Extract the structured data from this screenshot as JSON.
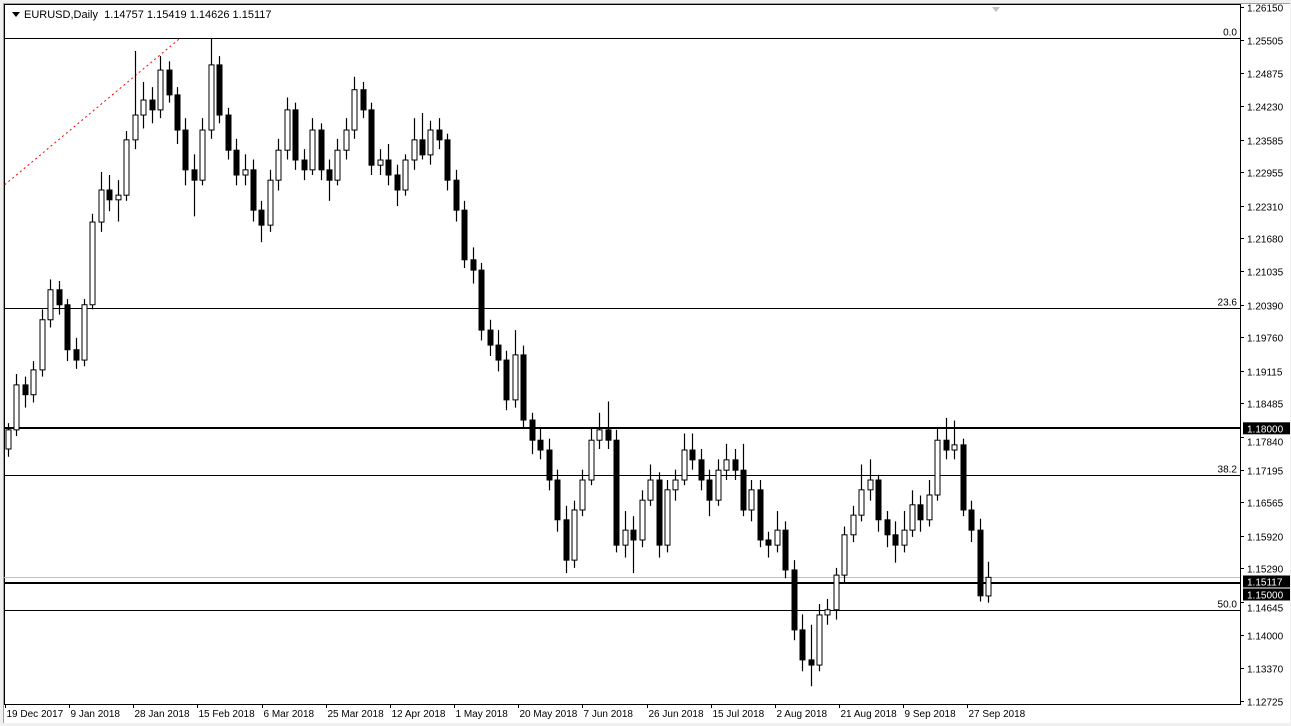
{
  "header": {
    "symbol": "EURUSD,Daily",
    "ohlc": "1.14757 1.15419 1.14626 1.15117"
  },
  "colors": {
    "background": "#ffffff",
    "candle": "#000000",
    "bull_body": "#ffffff",
    "bear_body": "#000000",
    "trendline": "#ff0000",
    "bid_line": "#c0c0c0",
    "price_label_bg": "#000000",
    "price_label_text": "#ffffff"
  },
  "chart_data": {
    "type": "candlestick",
    "symbol": "EURUSD",
    "timeframe": "Daily",
    "ylim": [
      1.12725,
      1.2615
    ],
    "grid": false,
    "y_ticks": [
      "1.26150",
      "1.25505",
      "1.24875",
      "1.24230",
      "1.23585",
      "1.22955",
      "1.22310",
      "1.21680",
      "1.21035",
      "1.20390",
      "1.19760",
      "1.19115",
      "1.18485",
      "1.17840",
      "1.17195",
      "1.16565",
      "1.15920",
      "1.15290",
      "1.14645",
      "1.14000",
      "1.13370",
      "1.12725"
    ],
    "x_ticks": [
      "19 Dec 2017",
      "9 Jan 2018",
      "28 Jan 2018",
      "15 Feb 2018",
      "6 Mar 2018",
      "25 Mar 2018",
      "12 Apr 2018",
      "1 May 2018",
      "20 May 2018",
      "7 Jun 2018",
      "26 Jun 2018",
      "15 Jul 2018",
      "2 Aug 2018",
      "21 Aug 2018",
      "9 Sep 2018",
      "27 Sep 2018"
    ],
    "horizontal_lines": [
      {
        "price": 1.18,
        "label": "1.18000"
      },
      {
        "price": 1.15,
        "label": "1.15000"
      }
    ],
    "bid": {
      "price": 1.15117,
      "label": "1.15117"
    },
    "fibonacci": [
      {
        "level": "0.0",
        "price": 1.2555
      },
      {
        "level": "23.6",
        "price": 1.2033
      },
      {
        "level": "38.2",
        "price": 1.171
      },
      {
        "level": "50.0",
        "price": 1.1449
      }
    ],
    "trendline": {
      "from": {
        "bar": -0.4,
        "price": 1.2271
      },
      "to": {
        "bar": 20.4,
        "price": 1.2555
      }
    },
    "candles": [
      [
        1.176,
        1.181,
        1.1745,
        1.1797
      ],
      [
        1.1797,
        1.1905,
        1.1785,
        1.1884
      ],
      [
        1.1884,
        1.19,
        1.184,
        1.1865
      ],
      [
        1.1865,
        1.193,
        1.185,
        1.1913
      ],
      [
        1.1913,
        1.203,
        1.19,
        1.201
      ],
      [
        1.201,
        1.2088,
        1.1995,
        1.2068
      ],
      [
        1.2068,
        1.2085,
        1.202,
        1.2039
      ],
      [
        1.2039,
        1.205,
        1.193,
        1.1952
      ],
      [
        1.1952,
        1.1975,
        1.1915,
        1.1932
      ],
      [
        1.1932,
        1.205,
        1.192,
        1.2039
      ],
      [
        1.2039,
        1.2215,
        1.203,
        1.2199
      ],
      [
        1.2199,
        1.2296,
        1.218,
        1.2261
      ],
      [
        1.2261,
        1.229,
        1.222,
        1.2242
      ],
      [
        1.2242,
        1.228,
        1.22,
        1.2251
      ],
      [
        1.2251,
        1.2375,
        1.224,
        1.2358
      ],
      [
        1.2358,
        1.253,
        1.234,
        1.2406
      ],
      [
        1.2406,
        1.247,
        1.238,
        1.2435
      ],
      [
        1.2435,
        1.246,
        1.239,
        1.2416
      ],
      [
        1.2416,
        1.252,
        1.24,
        1.2493
      ],
      [
        1.2493,
        1.251,
        1.243,
        1.2445
      ],
      [
        1.2445,
        1.246,
        1.235,
        1.2377
      ],
      [
        1.2377,
        1.24,
        1.227,
        1.23
      ],
      [
        1.23,
        1.233,
        1.221,
        1.228
      ],
      [
        1.228,
        1.24,
        1.227,
        1.2377
      ],
      [
        1.2377,
        1.2555,
        1.236,
        1.2503
      ],
      [
        1.2503,
        1.252,
        1.239,
        1.2406
      ],
      [
        1.2406,
        1.242,
        1.232,
        1.2338
      ],
      [
        1.2338,
        1.236,
        1.227,
        1.229
      ],
      [
        1.229,
        1.233,
        1.227,
        1.23
      ],
      [
        1.23,
        1.232,
        1.22,
        1.2222
      ],
      [
        1.2222,
        1.224,
        1.216,
        1.2193
      ],
      [
        1.2193,
        1.23,
        1.218,
        1.228
      ],
      [
        1.228,
        1.236,
        1.226,
        1.2338
      ],
      [
        1.2338,
        1.244,
        1.232,
        1.2416
      ],
      [
        1.2416,
        1.243,
        1.23,
        1.2319
      ],
      [
        1.2319,
        1.234,
        1.228,
        1.23
      ],
      [
        1.23,
        1.24,
        1.229,
        1.2377
      ],
      [
        1.2377,
        1.239,
        1.228,
        1.23
      ],
      [
        1.23,
        1.232,
        1.224,
        1.228
      ],
      [
        1.228,
        1.236,
        1.227,
        1.2338
      ],
      [
        1.2338,
        1.24,
        1.232,
        1.2377
      ],
      [
        1.2377,
        1.248,
        1.236,
        1.2455
      ],
      [
        1.2455,
        1.247,
        1.24,
        1.2416
      ],
      [
        1.2416,
        1.243,
        1.229,
        1.2309
      ],
      [
        1.2309,
        1.234,
        1.229,
        1.2319
      ],
      [
        1.2319,
        1.235,
        1.227,
        1.229
      ],
      [
        1.229,
        1.231,
        1.223,
        1.2261
      ],
      [
        1.2261,
        1.233,
        1.225,
        1.2319
      ],
      [
        1.2319,
        1.24,
        1.23,
        1.2358
      ],
      [
        1.2358,
        1.241,
        1.232,
        1.2329
      ],
      [
        1.2329,
        1.2395,
        1.231,
        1.2377
      ],
      [
        1.2377,
        1.24,
        1.234,
        1.2358
      ],
      [
        1.2358,
        1.237,
        1.226,
        1.228
      ],
      [
        1.228,
        1.23,
        1.22,
        1.2222
      ],
      [
        1.2222,
        1.224,
        1.211,
        1.2126
      ],
      [
        1.2126,
        1.215,
        1.208,
        1.2106
      ],
      [
        1.2106,
        1.212,
        1.197,
        1.199
      ],
      [
        1.199,
        1.201,
        1.194,
        1.1961
      ],
      [
        1.1961,
        1.199,
        1.191,
        1.1932
      ],
      [
        1.1932,
        1.195,
        1.1835,
        1.1855
      ],
      [
        1.1855,
        1.199,
        1.184,
        1.1942
      ],
      [
        1.1942,
        1.196,
        1.18,
        1.1816
      ],
      [
        1.1816,
        1.183,
        1.175,
        1.1777
      ],
      [
        1.1777,
        1.18,
        1.174,
        1.1758
      ],
      [
        1.1758,
        1.178,
        1.168,
        1.17
      ],
      [
        1.17,
        1.172,
        1.16,
        1.1623
      ],
      [
        1.1623,
        1.165,
        1.152,
        1.1545
      ],
      [
        1.1545,
        1.166,
        1.153,
        1.1642
      ],
      [
        1.1642,
        1.172,
        1.163,
        1.17
      ],
      [
        1.17,
        1.18,
        1.169,
        1.1777
      ],
      [
        1.1777,
        1.183,
        1.176,
        1.1797
      ],
      [
        1.1797,
        1.1852,
        1.176,
        1.1777
      ],
      [
        1.1777,
        1.1797,
        1.156,
        1.1574
      ],
      [
        1.1574,
        1.164,
        1.155,
        1.1603
      ],
      [
        1.1603,
        1.163,
        1.152,
        1.1584
      ],
      [
        1.1584,
        1.168,
        1.157,
        1.1661
      ],
      [
        1.1661,
        1.173,
        1.165,
        1.17
      ],
      [
        1.17,
        1.1715,
        1.155,
        1.1574
      ],
      [
        1.1574,
        1.17,
        1.156,
        1.1681
      ],
      [
        1.1681,
        1.172,
        1.166,
        1.17
      ],
      [
        1.17,
        1.179,
        1.169,
        1.1758
      ],
      [
        1.1758,
        1.179,
        1.172,
        1.1739
      ],
      [
        1.1739,
        1.176,
        1.168,
        1.17
      ],
      [
        1.17,
        1.172,
        1.163,
        1.1661
      ],
      [
        1.1661,
        1.174,
        1.165,
        1.1719
      ],
      [
        1.1719,
        1.177,
        1.17,
        1.1739
      ],
      [
        1.1739,
        1.176,
        1.17,
        1.1719
      ],
      [
        1.1719,
        1.177,
        1.163,
        1.1642
      ],
      [
        1.1642,
        1.17,
        1.162,
        1.1681
      ],
      [
        1.1681,
        1.17,
        1.157,
        1.1584
      ],
      [
        1.1584,
        1.16,
        1.155,
        1.1574
      ],
      [
        1.1574,
        1.164,
        1.156,
        1.1603
      ],
      [
        1.1603,
        1.162,
        1.151,
        1.1526
      ],
      [
        1.1526,
        1.1545,
        1.139,
        1.141
      ],
      [
        1.141,
        1.144,
        1.133,
        1.1352
      ],
      [
        1.1352,
        1.142,
        1.1301,
        1.1342
      ],
      [
        1.1342,
        1.146,
        1.133,
        1.1439
      ],
      [
        1.1439,
        1.147,
        1.142,
        1.1449
      ],
      [
        1.1449,
        1.153,
        1.143,
        1.1516
      ],
      [
        1.1516,
        1.161,
        1.15,
        1.1594
      ],
      [
        1.1594,
        1.165,
        1.158,
        1.1632
      ],
      [
        1.1632,
        1.173,
        1.162,
        1.1681
      ],
      [
        1.1681,
        1.174,
        1.166,
        1.17
      ],
      [
        1.17,
        1.171,
        1.16,
        1.1623
      ],
      [
        1.1623,
        1.164,
        1.157,
        1.1594
      ],
      [
        1.1594,
        1.162,
        1.154,
        1.1574
      ],
      [
        1.1574,
        1.164,
        1.156,
        1.1603
      ],
      [
        1.1603,
        1.168,
        1.159,
        1.1652
      ],
      [
        1.1652,
        1.167,
        1.16,
        1.1623
      ],
      [
        1.1623,
        1.17,
        1.161,
        1.1671
      ],
      [
        1.1671,
        1.18,
        1.166,
        1.1777
      ],
      [
        1.1777,
        1.182,
        1.174,
        1.1758
      ],
      [
        1.1758,
        1.1815,
        1.174,
        1.1768
      ],
      [
        1.1768,
        1.178,
        1.163,
        1.1642
      ],
      [
        1.1642,
        1.166,
        1.158,
        1.1603
      ],
      [
        1.1603,
        1.1625,
        1.1465,
        1.1476
      ],
      [
        1.14757,
        1.15419,
        1.14626,
        1.15117
      ]
    ]
  }
}
